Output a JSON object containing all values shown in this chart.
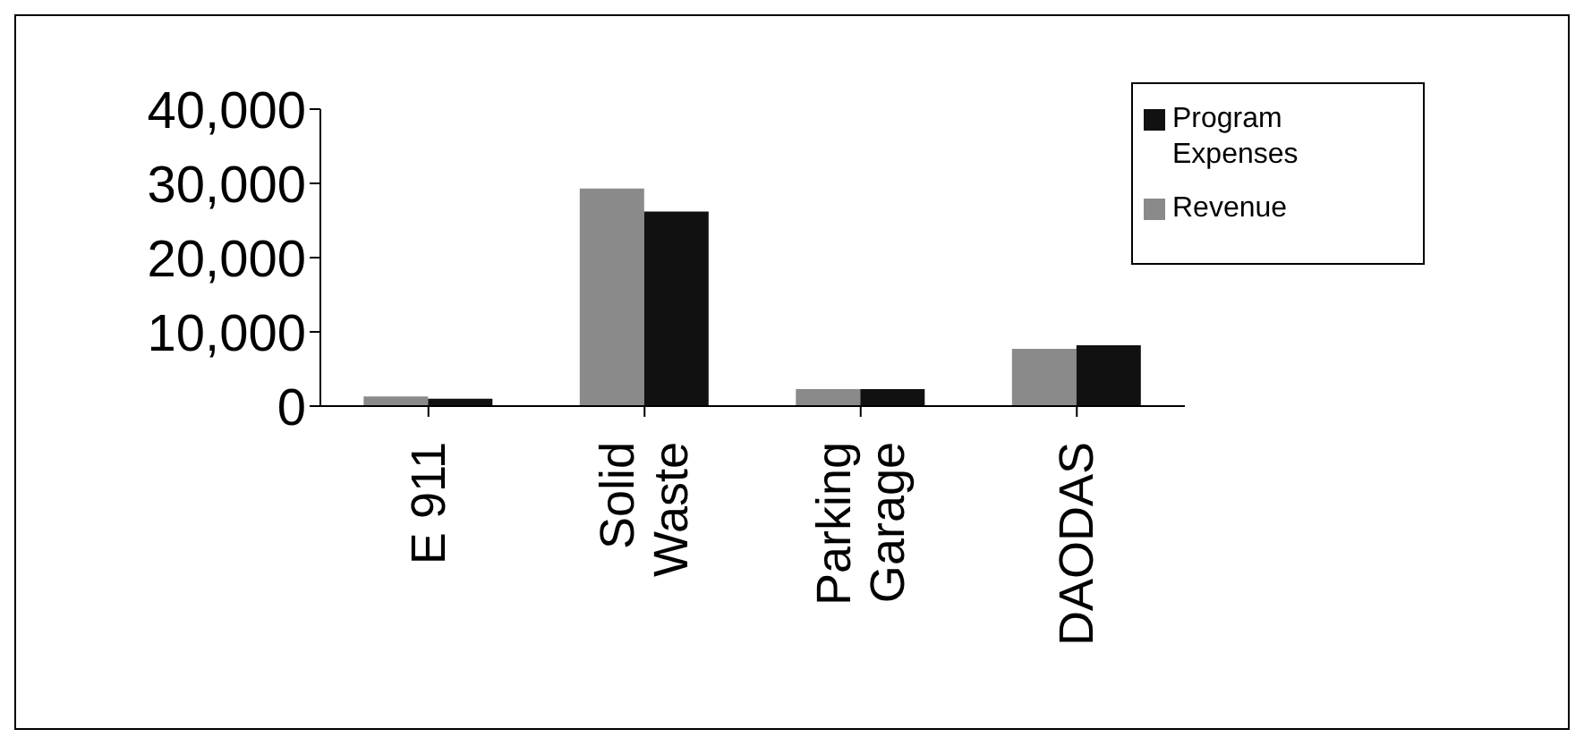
{
  "chart_data": {
    "type": "bar",
    "categories": [
      "E 911",
      "Solid Waste",
      "Parking Garage",
      "DAODAS"
    ],
    "series": [
      {
        "name": "Revenue",
        "color": "#8a8a8a",
        "values": [
          1300,
          29300,
          2300,
          7700
        ]
      },
      {
        "name": "Program Expenses",
        "color": "#111111",
        "values": [
          1000,
          26200,
          2300,
          8200
        ]
      }
    ],
    "ylim": [
      0,
      40000
    ],
    "yticks": [
      {
        "value": 0,
        "label": "0"
      },
      {
        "value": 10000,
        "label": "10,000"
      },
      {
        "value": 20000,
        "label": "20,000"
      },
      {
        "value": 30000,
        "label": "30,000"
      },
      {
        "value": 40000,
        "label": "40,000"
      }
    ],
    "grid": false,
    "legend": "top right"
  }
}
